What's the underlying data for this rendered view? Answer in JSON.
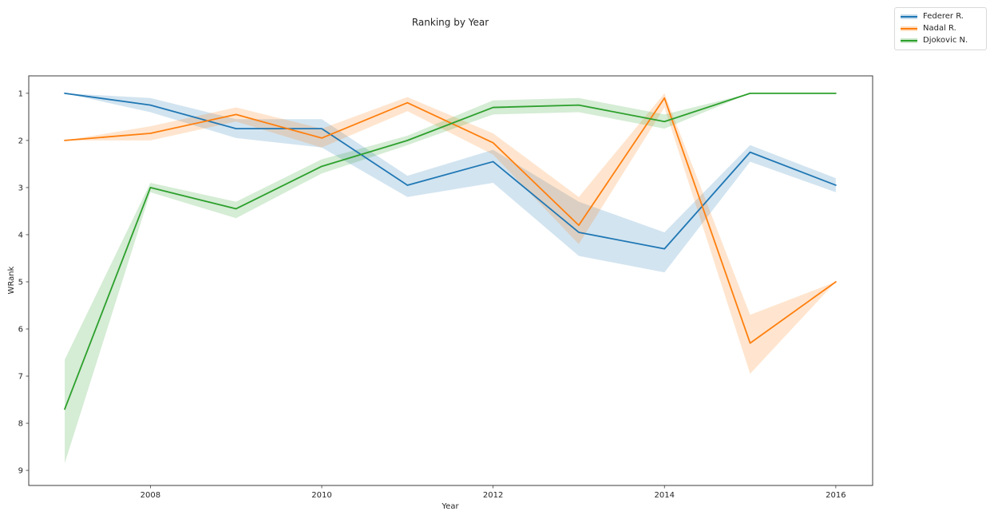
{
  "title": "Ranking by Year",
  "axes": {
    "xlabel": "Year",
    "ylabel": "WRank"
  },
  "legend": {
    "position": "top-right-outside",
    "entries": [
      {
        "label": "Federer R.",
        "color": "#1f77b4"
      },
      {
        "label": "Nadal R.",
        "color": "#ff7f0e"
      },
      {
        "label": "Djokovic N.",
        "color": "#2ca02c"
      }
    ]
  },
  "colors": {
    "federer": "#1f77b4",
    "nadal": "#ff7f0e",
    "djokovic": "#2ca02c",
    "spine": "#3c3c3c",
    "text": "#262626",
    "legend_border": "#d9d9d9",
    "background": "#ffffff"
  },
  "chart_data": {
    "type": "line",
    "title": "Ranking by Year",
    "xlabel": "Year",
    "ylabel": "WRank",
    "x": [
      2007,
      2008,
      2009,
      2010,
      2011,
      2012,
      2013,
      2014,
      2015,
      2016
    ],
    "x_ticks": [
      2008,
      2010,
      2012,
      2014,
      2016
    ],
    "y_ticks": [
      1,
      2,
      3,
      4,
      5,
      6,
      7,
      8,
      9
    ],
    "xlim": [
      2006.58,
      2016.43
    ],
    "ylim": [
      0.63,
      9.32
    ],
    "y_inverted": true,
    "grid": false,
    "band_opacity": 0.2,
    "legend_position": "top-right-outside",
    "series": [
      {
        "name": "Federer R.",
        "color": "#1f77b4",
        "values": [
          1.0,
          1.25,
          1.75,
          1.75,
          2.95,
          2.45,
          3.95,
          4.3,
          2.25,
          2.95
        ],
        "ci_lower": [
          1.0,
          1.1,
          1.55,
          1.55,
          2.75,
          2.2,
          3.3,
          3.95,
          2.1,
          2.8
        ],
        "ci_upper": [
          1.0,
          1.4,
          1.95,
          2.15,
          3.2,
          2.9,
          4.45,
          4.8,
          2.45,
          3.1
        ]
      },
      {
        "name": "Nadal R.",
        "color": "#ff7f0e",
        "values": [
          2.0,
          1.85,
          1.45,
          1.95,
          1.2,
          2.05,
          3.8,
          1.1,
          6.3,
          5.0
        ],
        "ci_lower": [
          2.0,
          1.7,
          1.3,
          1.75,
          1.08,
          1.85,
          3.2,
          1.0,
          5.7,
          5.0
        ],
        "ci_upper": [
          2.0,
          2.0,
          1.6,
          2.15,
          1.38,
          2.3,
          4.2,
          1.3,
          6.95,
          5.0
        ]
      },
      {
        "name": "Djokovic N.",
        "color": "#2ca02c",
        "values": [
          7.7,
          3.0,
          3.45,
          2.55,
          2.0,
          1.3,
          1.25,
          1.6,
          1.0,
          1.0
        ],
        "ci_lower": [
          6.65,
          2.9,
          3.3,
          2.4,
          1.9,
          1.15,
          1.1,
          1.45,
          1.0,
          1.0
        ],
        "ci_upper": [
          8.85,
          3.1,
          3.65,
          2.7,
          2.1,
          1.45,
          1.4,
          1.75,
          1.0,
          1.0
        ]
      }
    ]
  }
}
